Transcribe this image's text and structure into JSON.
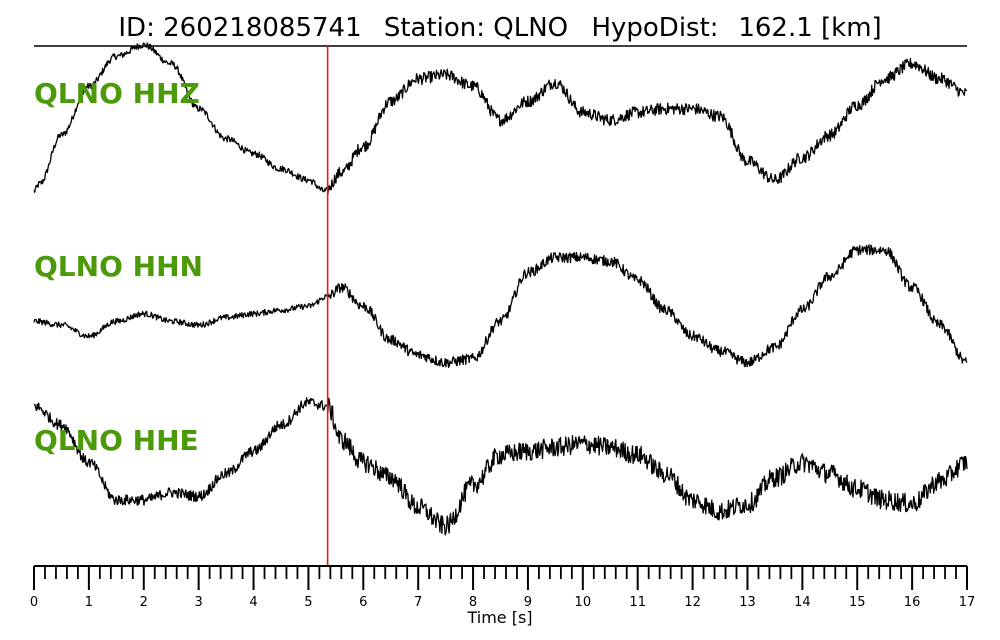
{
  "title": {
    "id_label": "ID: 260218085741",
    "station_label": "Station: QLNO",
    "dist_label": "HypoDist:",
    "dist_value": "162.1 [km]"
  },
  "colors": {
    "trace": "#000000",
    "pick_line": "#e41a1c",
    "channel_label": "#4c9a0a"
  },
  "chart_data": {
    "type": "line",
    "title": "ID: 260218085741   Station: QLNO   HypoDist:   162.1 [km]",
    "xlabel": "Time [s]",
    "xlim": [
      0,
      17
    ],
    "x_ticks": [
      "0",
      "1",
      "2",
      "3",
      "4",
      "5",
      "6",
      "7",
      "8",
      "9",
      "10",
      "11",
      "12",
      "13",
      "14",
      "15",
      "16",
      "17"
    ],
    "minor_tick_step": 0.2,
    "pick_time": 5.35,
    "grid": false,
    "series": [
      {
        "name": "QLNO HHZ",
        "noise": 0.08,
        "points": [
          [
            0,
            -0.95
          ],
          [
            0.1,
            -0.85
          ],
          [
            0.5,
            -0.2
          ],
          [
            1,
            0.45
          ],
          [
            1.5,
            0.85
          ],
          [
            2,
            1.0
          ],
          [
            2.5,
            0.75
          ],
          [
            3,
            0.15
          ],
          [
            3.5,
            -0.25
          ],
          [
            4,
            -0.45
          ],
          [
            4.5,
            -0.65
          ],
          [
            5,
            -0.8
          ],
          [
            5.3,
            -0.95
          ],
          [
            5.6,
            -0.7
          ],
          [
            6,
            -0.35
          ],
          [
            6.5,
            0.25
          ],
          [
            7,
            0.55
          ],
          [
            7.5,
            0.6
          ],
          [
            8,
            0.45
          ],
          [
            8.5,
            0.0
          ],
          [
            9,
            0.25
          ],
          [
            9.5,
            0.5
          ],
          [
            10,
            0.1
          ],
          [
            10.5,
            0.0
          ],
          [
            11,
            0.1
          ],
          [
            11.5,
            0.15
          ],
          [
            12,
            0.15
          ],
          [
            12.5,
            0.05
          ],
          [
            13,
            -0.55
          ],
          [
            13.5,
            -0.8
          ],
          [
            14,
            -0.5
          ],
          [
            14.5,
            -0.2
          ],
          [
            15,
            0.2
          ],
          [
            15.5,
            0.55
          ],
          [
            16,
            0.75
          ],
          [
            16.5,
            0.55
          ],
          [
            17,
            0.35
          ]
        ]
      },
      {
        "name": "QLNO HHN",
        "noise": 0.07,
        "points": [
          [
            0,
            -0.35
          ],
          [
            0.5,
            -0.4
          ],
          [
            1,
            -0.55
          ],
          [
            1.5,
            -0.35
          ],
          [
            2,
            -0.25
          ],
          [
            2.5,
            -0.35
          ],
          [
            3,
            -0.4
          ],
          [
            3.5,
            -0.3
          ],
          [
            4,
            -0.25
          ],
          [
            4.5,
            -0.2
          ],
          [
            5,
            -0.15
          ],
          [
            5.35,
            -0.02
          ],
          [
            5.6,
            0.1
          ],
          [
            6,
            -0.15
          ],
          [
            6.5,
            -0.6
          ],
          [
            7,
            -0.8
          ],
          [
            7.5,
            -0.9
          ],
          [
            8,
            -0.85
          ],
          [
            8.5,
            -0.35
          ],
          [
            9,
            0.3
          ],
          [
            9.5,
            0.5
          ],
          [
            10,
            0.5
          ],
          [
            10.5,
            0.45
          ],
          [
            11,
            0.2
          ],
          [
            11.5,
            -0.2
          ],
          [
            12,
            -0.55
          ],
          [
            12.5,
            -0.75
          ],
          [
            13,
            -0.9
          ],
          [
            13.5,
            -0.7
          ],
          [
            14,
            -0.2
          ],
          [
            14.5,
            0.25
          ],
          [
            15,
            0.6
          ],
          [
            15.5,
            0.6
          ],
          [
            16,
            0.1
          ],
          [
            16.5,
            -0.4
          ],
          [
            17,
            -0.9
          ]
        ]
      },
      {
        "name": "QLNO HHE",
        "noise": 0.13,
        "points": [
          [
            0,
            0.85
          ],
          [
            0.5,
            0.6
          ],
          [
            1,
            0.1
          ],
          [
            1.5,
            -0.4
          ],
          [
            2,
            -0.4
          ],
          [
            2.5,
            -0.3
          ],
          [
            3,
            -0.35
          ],
          [
            3.5,
            -0.05
          ],
          [
            4,
            0.25
          ],
          [
            4.5,
            0.6
          ],
          [
            5,
            0.9
          ],
          [
            5.35,
            0.85
          ],
          [
            5.6,
            0.4
          ],
          [
            6,
            0.1
          ],
          [
            6.5,
            -0.1
          ],
          [
            7,
            -0.5
          ],
          [
            7.5,
            -0.75
          ],
          [
            8,
            -0.2
          ],
          [
            8.5,
            0.2
          ],
          [
            9,
            0.25
          ],
          [
            9.5,
            0.3
          ],
          [
            10,
            0.35
          ],
          [
            10.5,
            0.3
          ],
          [
            11,
            0.2
          ],
          [
            11.5,
            -0.05
          ],
          [
            12,
            -0.4
          ],
          [
            12.5,
            -0.55
          ],
          [
            13,
            -0.45
          ],
          [
            13.5,
            -0.1
          ],
          [
            14,
            0.1
          ],
          [
            14.5,
            -0.05
          ],
          [
            15,
            -0.25
          ],
          [
            15.5,
            -0.4
          ],
          [
            16,
            -0.45
          ],
          [
            16.5,
            -0.15
          ],
          [
            17,
            0.1
          ]
        ]
      }
    ]
  }
}
